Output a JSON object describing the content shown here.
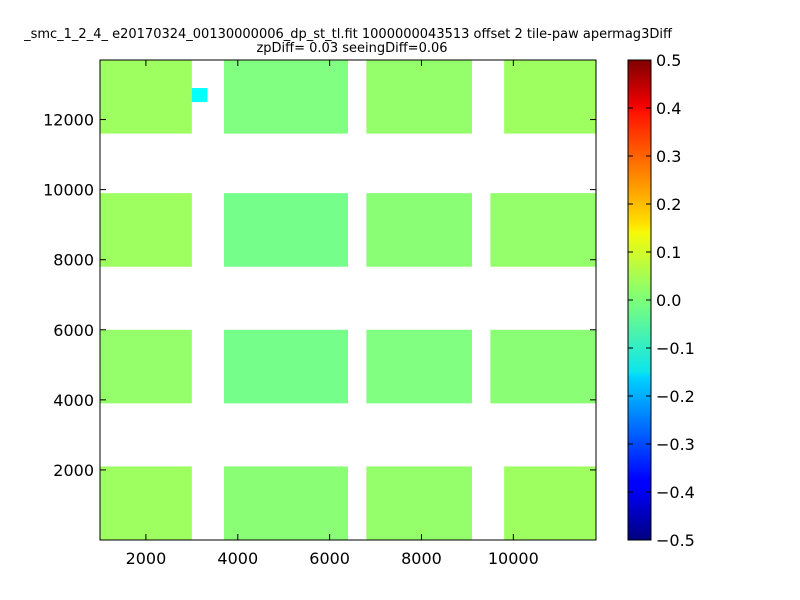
{
  "chart_data": {
    "type": "heatmap",
    "title_lines": [
      "_smc_1_2_4_ e20170324_00130000006_dp_st_tl.fit 1000000043513 offset 2 tile-paw apermag3Diff",
      "zpDiff= 0.03 seeingDiff=0.06"
    ],
    "xlabel": "",
    "ylabel": "",
    "xlim": [
      1000,
      11800
    ],
    "ylim": [
      0,
      13700
    ],
    "x_ticks": [
      2000,
      4000,
      6000,
      8000,
      10000
    ],
    "y_ticks": [
      2000,
      4000,
      6000,
      8000,
      10000,
      12000
    ],
    "colorbar": {
      "min": -0.5,
      "max": 0.5,
      "colormap": "jet",
      "ticks": [
        -0.5,
        -0.4,
        -0.3,
        -0.2,
        -0.1,
        0.0,
        0.1,
        0.2,
        0.3,
        0.4,
        0.5
      ],
      "tick_labels": [
        "−0.5",
        "−0.4",
        "−0.3",
        "−0.2",
        "−0.1",
        "0.0",
        "0.1",
        "0.2",
        "0.3",
        "0.4",
        "0.5"
      ]
    },
    "cell_size": [
      340,
      340
    ],
    "cells": [
      {
        "x0": 1000,
        "x1": 3000,
        "y0": 11600,
        "y1": 13700,
        "value": 0.03
      },
      {
        "x0": 3000,
        "x1": 3340,
        "y0": 12500,
        "y1": 12900,
        "value": -0.12
      },
      {
        "x0": 3700,
        "x1": 6400,
        "y0": 11600,
        "y1": 13700,
        "value": 0.0
      },
      {
        "x0": 6800,
        "x1": 9100,
        "y0": 11600,
        "y1": 13700,
        "value": 0.02
      },
      {
        "x0": 9800,
        "x1": 11800,
        "y0": 11600,
        "y1": 13700,
        "value": 0.03
      },
      {
        "x0": 1000,
        "x1": 3000,
        "y0": 7800,
        "y1": 9900,
        "value": 0.03
      },
      {
        "x0": 3700,
        "x1": 6400,
        "y0": 7800,
        "y1": 9900,
        "value": -0.01
      },
      {
        "x0": 6800,
        "x1": 9100,
        "y0": 7800,
        "y1": 9900,
        "value": 0.01
      },
      {
        "x0": 9500,
        "x1": 11800,
        "y0": 7800,
        "y1": 9900,
        "value": 0.02
      },
      {
        "x0": 1000,
        "x1": 3000,
        "y0": 3900,
        "y1": 6000,
        "value": 0.02
      },
      {
        "x0": 3700,
        "x1": 6400,
        "y0": 3900,
        "y1": 6000,
        "value": -0.01
      },
      {
        "x0": 6800,
        "x1": 9100,
        "y0": 3900,
        "y1": 6000,
        "value": 0.0
      },
      {
        "x0": 9500,
        "x1": 11800,
        "y0": 3900,
        "y1": 6000,
        "value": 0.01
      },
      {
        "x0": 1000,
        "x1": 3000,
        "y0": 0,
        "y1": 2100,
        "value": 0.03
      },
      {
        "x0": 3700,
        "x1": 6400,
        "y0": 0,
        "y1": 2100,
        "value": 0.01
      },
      {
        "x0": 6800,
        "x1": 9100,
        "y0": 0,
        "y1": 2100,
        "value": 0.02
      },
      {
        "x0": 9800,
        "x1": 11800,
        "y0": 0,
        "y1": 2100,
        "value": 0.03
      }
    ]
  }
}
